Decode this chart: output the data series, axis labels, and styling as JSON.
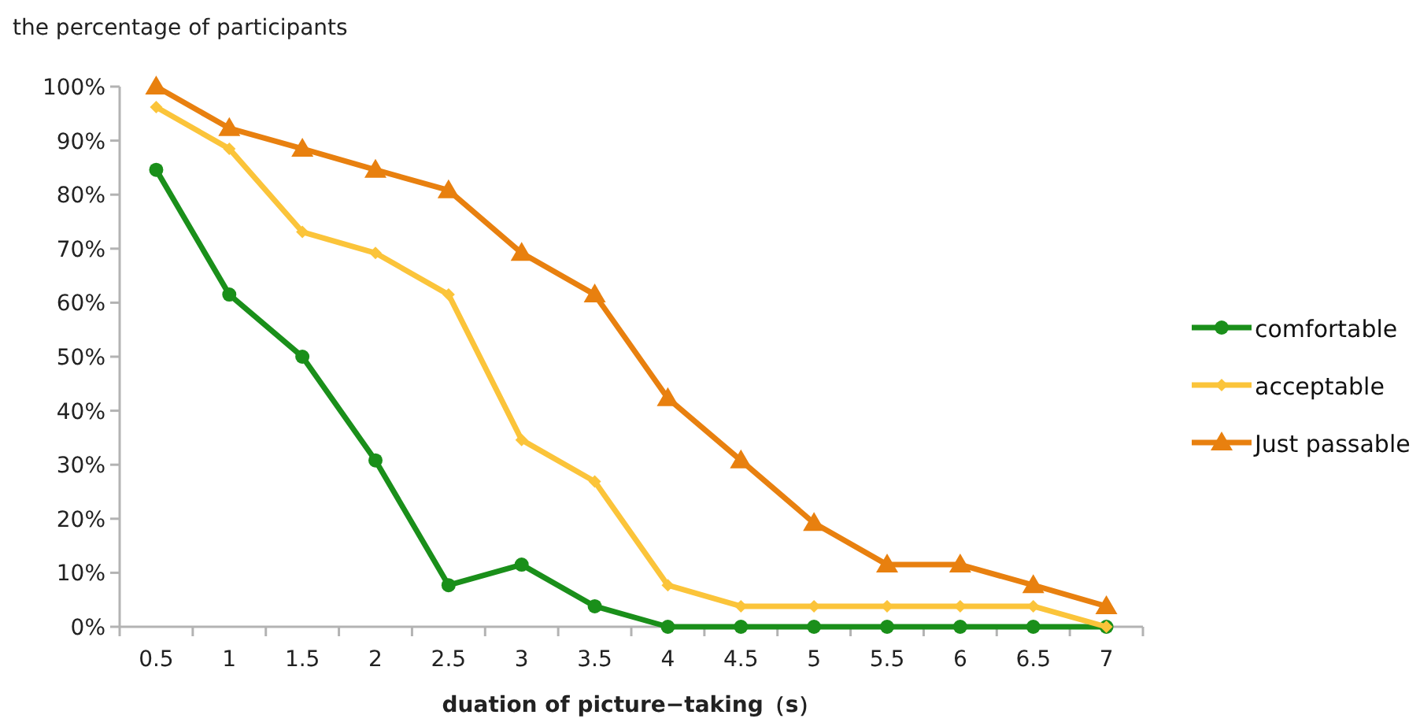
{
  "chart_data": {
    "type": "line",
    "ylabel": "the percentage of participants",
    "xlabel": "duation of picture−taking（s）",
    "categories": [
      "0.5",
      "1",
      "1.5",
      "2",
      "2.5",
      "3",
      "3.5",
      "4",
      "4.5",
      "5",
      "5.5",
      "6",
      "6.5",
      "7"
    ],
    "ylim": [
      0,
      100
    ],
    "yticks": [
      {
        "value": 0,
        "label": "0%"
      },
      {
        "value": 10,
        "label": "10%"
      },
      {
        "value": 20,
        "label": "20%"
      },
      {
        "value": 30,
        "label": "30%"
      },
      {
        "value": 40,
        "label": "40%"
      },
      {
        "value": 50,
        "label": "50%"
      },
      {
        "value": 60,
        "label": "60%"
      },
      {
        "value": 70,
        "label": "70%"
      },
      {
        "value": 80,
        "label": "80%"
      },
      {
        "value": 90,
        "label": "90%"
      },
      {
        "value": 100,
        "label": "100%"
      }
    ],
    "grid": false,
    "legend": "right",
    "line_style": "solid",
    "series": [
      {
        "name": "comfortable",
        "color": "#1a8f1a",
        "marker": "circle",
        "values": [
          84.6,
          61.5,
          50,
          30.8,
          7.7,
          11.5,
          3.8,
          0,
          0,
          0,
          0,
          0,
          0,
          0
        ]
      },
      {
        "name": "acceptable",
        "color": "#fbc43a",
        "marker": "diamond",
        "values": [
          96.2,
          88.5,
          73.1,
          69.2,
          61.5,
          34.6,
          26.9,
          7.7,
          3.8,
          3.8,
          3.8,
          3.8,
          3.8,
          0
        ]
      },
      {
        "name": "Just passable",
        "color": "#e8800f",
        "marker": "triangle",
        "values": [
          100,
          92.3,
          88.5,
          84.6,
          80.8,
          69.2,
          61.5,
          42.3,
          30.8,
          19.2,
          11.5,
          11.5,
          7.7,
          3.8
        ]
      }
    ]
  }
}
